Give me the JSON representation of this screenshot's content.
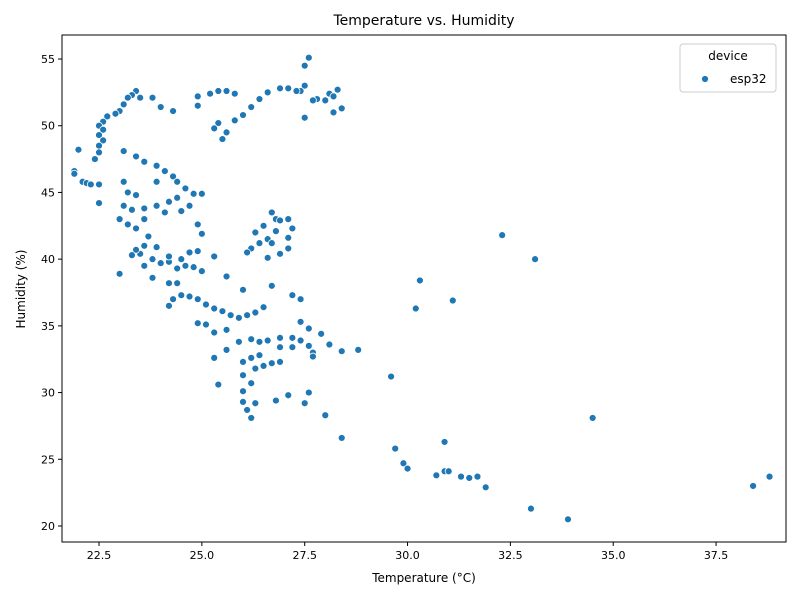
{
  "chart_data": {
    "type": "scatter",
    "title": "Temperature vs. Humidity",
    "xlabel": "Temperature (°C)",
    "ylabel": "Humidity (%)",
    "xlim": [
      21.6,
      39.2
    ],
    "ylim": [
      18.8,
      56.8
    ],
    "xticks": [
      "22.5",
      "25.0",
      "27.5",
      "30.0",
      "32.5",
      "35.0",
      "37.5"
    ],
    "xtick_values": [
      22.5,
      25.0,
      27.5,
      30.0,
      32.5,
      35.0,
      37.5
    ],
    "yticks": [
      "20",
      "25",
      "30",
      "35",
      "40",
      "45",
      "50",
      "55"
    ],
    "ytick_values": [
      20,
      25,
      30,
      35,
      40,
      45,
      50,
      55
    ],
    "grid": false,
    "legend": {
      "title": "device",
      "placement": "top-right",
      "entries": [
        "esp32"
      ]
    },
    "colors": {
      "esp32": "#1f77b4"
    },
    "series": [
      {
        "name": "esp32",
        "points": [
          [
            27.6,
            55.1
          ],
          [
            27.5,
            54.5
          ],
          [
            27.5,
            53.0
          ],
          [
            27.4,
            52.6
          ],
          [
            28.3,
            52.7
          ],
          [
            28.1,
            52.4
          ],
          [
            28.2,
            52.2
          ],
          [
            27.8,
            52.0
          ],
          [
            27.7,
            51.9
          ],
          [
            28.0,
            51.9
          ],
          [
            28.4,
            51.3
          ],
          [
            28.2,
            51.0
          ],
          [
            27.5,
            50.6
          ],
          [
            23.4,
            52.6
          ],
          [
            23.3,
            52.3
          ],
          [
            23.2,
            52.1
          ],
          [
            23.5,
            52.1
          ],
          [
            23.8,
            52.1
          ],
          [
            23.1,
            51.6
          ],
          [
            23.0,
            51.1
          ],
          [
            22.9,
            50.9
          ],
          [
            22.7,
            50.7
          ],
          [
            22.6,
            50.3
          ],
          [
            22.5,
            50.0
          ],
          [
            22.6,
            49.7
          ],
          [
            22.5,
            49.3
          ],
          [
            22.6,
            48.9
          ],
          [
            22.5,
            48.5
          ],
          [
            22.5,
            48.0
          ],
          [
            22.4,
            47.5
          ],
          [
            22.0,
            48.2
          ],
          [
            21.9,
            46.6
          ],
          [
            21.9,
            46.4
          ],
          [
            22.1,
            45.8
          ],
          [
            22.2,
            45.7
          ],
          [
            22.3,
            45.6
          ],
          [
            22.5,
            45.6
          ],
          [
            22.5,
            44.2
          ],
          [
            24.0,
            51.4
          ],
          [
            24.3,
            51.1
          ],
          [
            24.9,
            51.5
          ],
          [
            24.9,
            52.2
          ],
          [
            25.2,
            52.4
          ],
          [
            25.4,
            52.6
          ],
          [
            25.6,
            52.6
          ],
          [
            25.8,
            52.4
          ],
          [
            25.4,
            50.2
          ],
          [
            25.6,
            49.5
          ],
          [
            25.8,
            50.4
          ],
          [
            26.0,
            50.8
          ],
          [
            26.2,
            51.4
          ],
          [
            26.4,
            52.0
          ],
          [
            26.6,
            52.5
          ],
          [
            26.9,
            52.8
          ],
          [
            27.1,
            52.8
          ],
          [
            27.3,
            52.6
          ],
          [
            25.5,
            49.0
          ],
          [
            25.3,
            49.8
          ],
          [
            23.1,
            48.1
          ],
          [
            23.4,
            47.7
          ],
          [
            23.6,
            47.3
          ],
          [
            23.9,
            47.0
          ],
          [
            24.1,
            46.6
          ],
          [
            24.3,
            46.2
          ],
          [
            24.4,
            45.8
          ],
          [
            24.6,
            45.3
          ],
          [
            24.8,
            44.9
          ],
          [
            25.0,
            44.9
          ],
          [
            24.7,
            44.0
          ],
          [
            24.5,
            43.6
          ],
          [
            23.9,
            45.8
          ],
          [
            23.1,
            45.8
          ],
          [
            23.2,
            45.0
          ],
          [
            23.4,
            44.8
          ],
          [
            23.1,
            44.0
          ],
          [
            23.3,
            43.7
          ],
          [
            23.6,
            43.8
          ],
          [
            23.9,
            44.0
          ],
          [
            24.2,
            44.3
          ],
          [
            24.4,
            44.6
          ],
          [
            23.0,
            43.0
          ],
          [
            23.2,
            42.6
          ],
          [
            23.4,
            42.3
          ],
          [
            23.6,
            43.0
          ],
          [
            24.1,
            43.5
          ],
          [
            23.7,
            41.7
          ],
          [
            23.6,
            41.0
          ],
          [
            23.9,
            40.9
          ],
          [
            23.5,
            40.4
          ],
          [
            23.8,
            40.0
          ],
          [
            23.6,
            39.5
          ],
          [
            23.8,
            38.6
          ],
          [
            24.0,
            39.7
          ],
          [
            24.2,
            39.8
          ],
          [
            24.4,
            39.3
          ],
          [
            24.6,
            39.5
          ],
          [
            24.8,
            39.4
          ],
          [
            25.0,
            39.1
          ],
          [
            24.2,
            40.2
          ],
          [
            24.5,
            40.0
          ],
          [
            24.7,
            40.5
          ],
          [
            24.9,
            40.6
          ],
          [
            25.3,
            40.2
          ],
          [
            24.9,
            42.6
          ],
          [
            25.0,
            41.9
          ],
          [
            23.4,
            40.7
          ],
          [
            23.3,
            40.3
          ],
          [
            23.0,
            38.9
          ],
          [
            24.2,
            38.2
          ],
          [
            24.4,
            38.2
          ],
          [
            24.2,
            36.5
          ],
          [
            24.3,
            37.0
          ],
          [
            24.5,
            37.3
          ],
          [
            24.7,
            37.2
          ],
          [
            24.9,
            37.0
          ],
          [
            25.1,
            36.6
          ],
          [
            25.3,
            36.3
          ],
          [
            25.5,
            36.1
          ],
          [
            25.7,
            35.8
          ],
          [
            25.9,
            35.6
          ],
          [
            26.1,
            35.8
          ],
          [
            26.3,
            36.0
          ],
          [
            26.5,
            36.4
          ],
          [
            24.9,
            35.2
          ],
          [
            25.1,
            35.1
          ],
          [
            25.3,
            34.5
          ],
          [
            25.6,
            34.7
          ],
          [
            25.6,
            38.7
          ],
          [
            26.0,
            37.7
          ],
          [
            26.7,
            38.0
          ],
          [
            27.2,
            37.3
          ],
          [
            27.4,
            37.0
          ],
          [
            26.3,
            42.0
          ],
          [
            26.5,
            42.5
          ],
          [
            26.8,
            43.0
          ],
          [
            27.1,
            43.0
          ],
          [
            27.2,
            42.3
          ],
          [
            27.1,
            41.6
          ],
          [
            26.8,
            42.1
          ],
          [
            26.6,
            41.5
          ],
          [
            26.4,
            41.2
          ],
          [
            26.2,
            40.8
          ],
          [
            26.1,
            40.5
          ],
          [
            26.6,
            40.1
          ],
          [
            26.9,
            40.4
          ],
          [
            27.1,
            40.8
          ],
          [
            26.7,
            43.5
          ],
          [
            26.9,
            42.9
          ],
          [
            26.7,
            41.2
          ],
          [
            26.9,
            34.1
          ],
          [
            27.2,
            34.1
          ],
          [
            27.4,
            35.3
          ],
          [
            27.6,
            34.8
          ],
          [
            27.9,
            34.4
          ],
          [
            27.4,
            33.9
          ],
          [
            27.6,
            33.5
          ],
          [
            27.7,
            33.0
          ],
          [
            27.7,
            32.7
          ],
          [
            26.6,
            33.9
          ],
          [
            26.4,
            33.8
          ],
          [
            26.2,
            34.0
          ],
          [
            25.9,
            33.8
          ],
          [
            26.9,
            33.4
          ],
          [
            27.2,
            33.4
          ],
          [
            28.1,
            33.6
          ],
          [
            28.4,
            33.1
          ],
          [
            28.8,
            33.2
          ],
          [
            26.4,
            32.8
          ],
          [
            26.2,
            32.6
          ],
          [
            26.0,
            32.3
          ],
          [
            26.3,
            31.8
          ],
          [
            26.5,
            32.0
          ],
          [
            26.7,
            32.2
          ],
          [
            26.9,
            32.3
          ],
          [
            26.0,
            31.3
          ],
          [
            26.2,
            30.7
          ],
          [
            25.3,
            32.6
          ],
          [
            25.4,
            30.6
          ],
          [
            25.6,
            33.2
          ],
          [
            26.0,
            30.1
          ],
          [
            26.0,
            29.3
          ],
          [
            26.3,
            29.2
          ],
          [
            26.1,
            28.7
          ],
          [
            26.2,
            28.1
          ],
          [
            26.8,
            29.4
          ],
          [
            27.1,
            29.8
          ],
          [
            27.5,
            29.2
          ],
          [
            27.6,
            30.0
          ],
          [
            28.0,
            28.3
          ],
          [
            28.4,
            26.6
          ],
          [
            29.6,
            31.2
          ],
          [
            29.7,
            25.8
          ],
          [
            29.9,
            24.7
          ],
          [
            30.0,
            24.3
          ],
          [
            30.7,
            23.8
          ],
          [
            30.9,
            24.1
          ],
          [
            31.0,
            24.1
          ],
          [
            31.3,
            23.7
          ],
          [
            31.5,
            23.6
          ],
          [
            31.7,
            23.7
          ],
          [
            31.9,
            22.9
          ],
          [
            30.9,
            26.3
          ],
          [
            30.2,
            36.3
          ],
          [
            30.3,
            38.4
          ],
          [
            31.1,
            36.9
          ],
          [
            32.3,
            41.8
          ],
          [
            33.1,
            40.0
          ],
          [
            33.0,
            21.3
          ],
          [
            33.9,
            20.5
          ],
          [
            34.5,
            28.1
          ],
          [
            38.4,
            23.0
          ],
          [
            38.8,
            23.7
          ]
        ]
      }
    ]
  }
}
